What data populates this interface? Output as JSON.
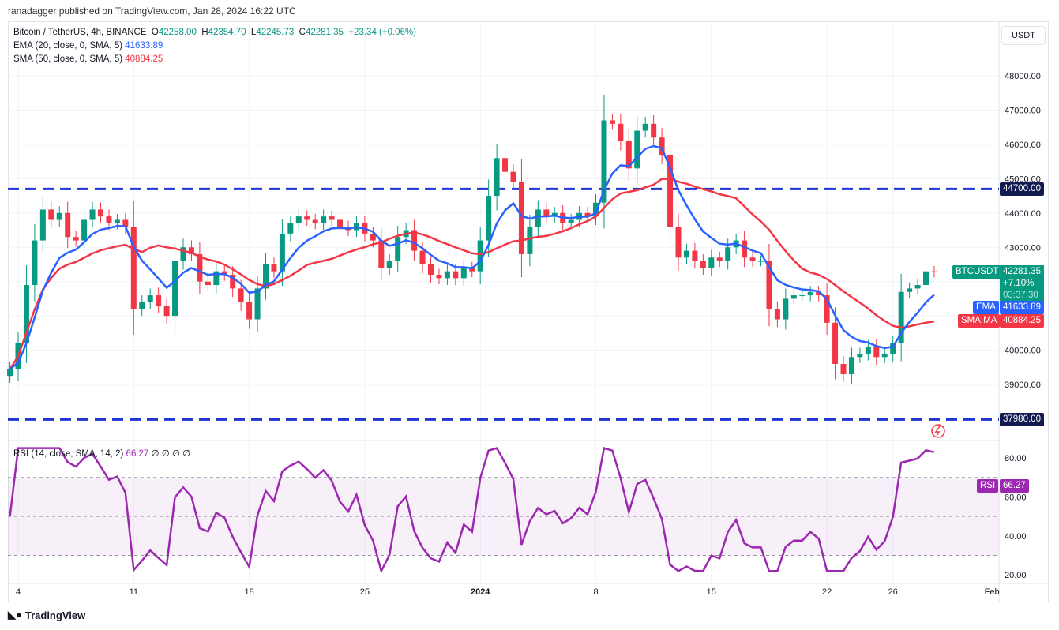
{
  "header": {
    "published": "ranadagger published on TradingView.com, Jan 28, 2024 16:22 UTC"
  },
  "legend": {
    "symbol": "Bitcoin / TetherUS, 4h, BINANCE",
    "o_label": "O",
    "o": "42258.00",
    "h_label": "H",
    "h": "42354.70",
    "l_label": "L",
    "l": "42245.73",
    "c_label": "C",
    "c": "42281.35",
    "change": "+23.34 (+0.06%)",
    "ema_label": "EMA (20, close, 0, SMA, 5)",
    "ema_value": "41633.89",
    "sma_label": "SMA (50, close, 0, SMA, 5)",
    "sma_value": "40884.25",
    "rsi_label": "RSI (14, close, SMA, 14, 2)",
    "rsi_value": "66.27",
    "rsi_extra": "∅ ∅ ∅ ∅"
  },
  "currency_button": "USDT",
  "price_labels": {
    "symbol": "BTCUSDT",
    "price": "42281.35",
    "change_pct": "+7.10%",
    "countdown": "03:37:30",
    "ema_tag": "EMA",
    "ema": "41633.89",
    "sma_tag": "SMA:MA",
    "sma": "40884.25",
    "level_high": "44700.00",
    "level_low": "37980.00",
    "rsi_tag": "RSI",
    "rsi": "66.27"
  },
  "footer": {
    "brand": "TradingView"
  },
  "colors": {
    "up": "#089981",
    "down": "#f23645",
    "ema": "#2962ff",
    "sma": "#f23645",
    "level": "#1e35d6",
    "rsi": "#9c27b0",
    "level_label": "#131a4f"
  },
  "chart_data": {
    "type": "candlestick",
    "interval_shown": "4h",
    "x_start": "2023-12-03T12:00",
    "x_step_hours": 12,
    "closes": [
      39450,
      40200,
      41900,
      43200,
      44100,
      43800,
      44000,
      43300,
      43200,
      43800,
      44100,
      43900,
      43700,
      43800,
      43600,
      41200,
      41400,
      41600,
      41300,
      41000,
      42600,
      43000,
      42800,
      42000,
      41900,
      42300,
      42200,
      41800,
      41400,
      40900,
      41800,
      42500,
      42300,
      43400,
      43700,
      43900,
      43800,
      43700,
      43900,
      43800,
      43600,
      43500,
      43700,
      43400,
      43200,
      42400,
      42600,
      43300,
      43500,
      42900,
      42500,
      42200,
      42100,
      42300,
      42100,
      42400,
      42300,
      43200,
      44500,
      45600,
      45200,
      44900,
      42800,
      43600,
      44100,
      43900,
      44000,
      43700,
      43800,
      44000,
      43900,
      44300,
      46700,
      46600,
      46100,
      45300,
      46400,
      46600,
      46200,
      45700,
      43600,
      42700,
      42900,
      42600,
      42400,
      42700,
      42600,
      43000,
      43200,
      42700,
      42600,
      42600,
      41200,
      40900,
      41500,
      41600,
      41600,
      41700,
      41600,
      40800,
      39600,
      39300,
      39800,
      39900,
      40100,
      39800,
      39900,
      40200,
      41700,
      41800,
      41900,
      42300,
      42281.35
    ],
    "horizontal_levels": [
      44700,
      37980
    ],
    "y_ticks": [
      "48000.00",
      "47000.00",
      "46000.00",
      "45000.00",
      "44000.00",
      "43000.00",
      "42000.00",
      "41000.00",
      "40000.00",
      "39000.00"
    ],
    "ylim": [
      37600,
      49000
    ],
    "x_ticks": [
      "4",
      "11",
      "18",
      "25",
      "2024",
      "8",
      "15",
      "22",
      "26",
      "Feb"
    ],
    "rsi_ticks": [
      "80.00",
      "60.00",
      "40.00",
      "20.00"
    ],
    "rsi_bands": [
      30,
      70
    ]
  }
}
